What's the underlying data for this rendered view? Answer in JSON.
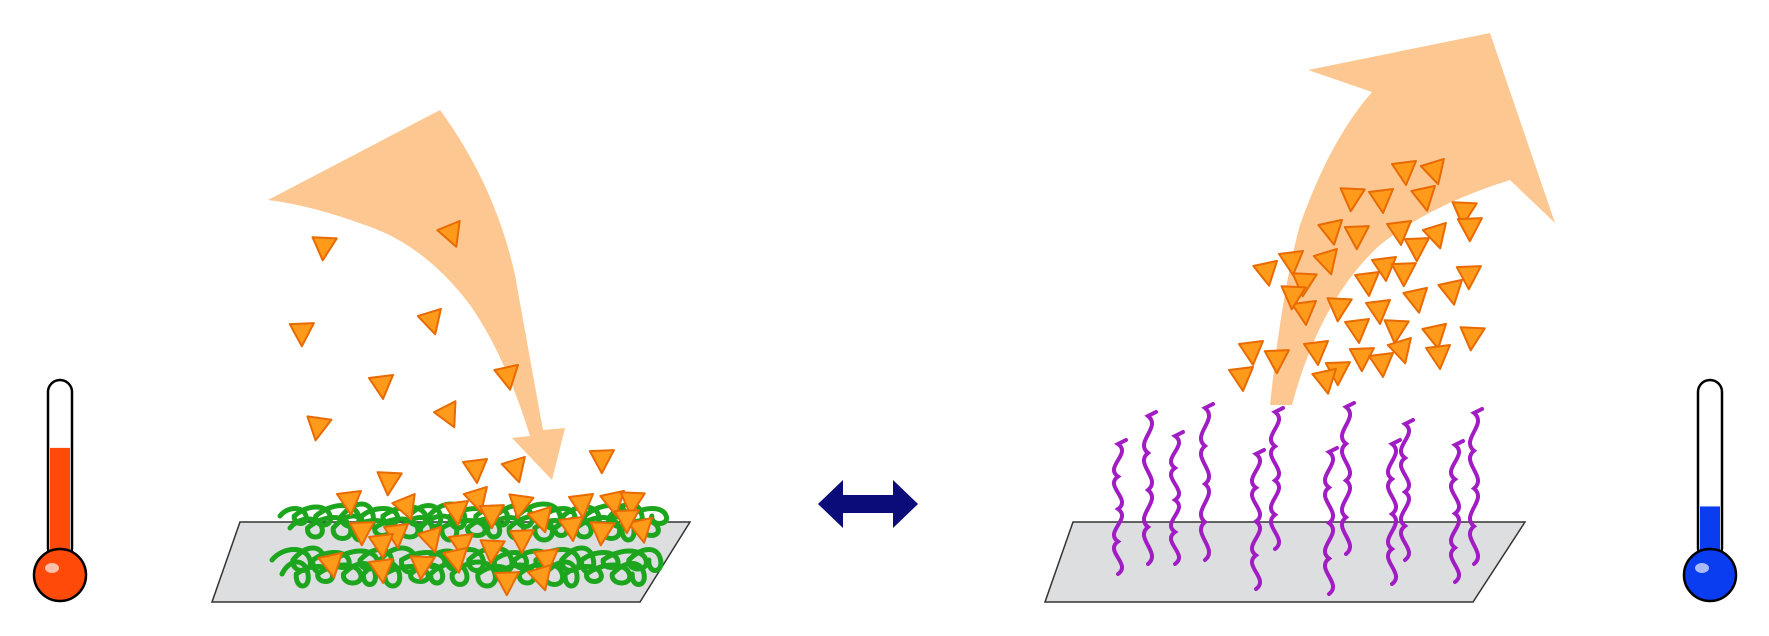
{
  "colors": {
    "background": "#ffffff",
    "surface_fill": "#dcdee0",
    "surface_stroke": "#333333",
    "flow_arrow": "#fdc48c",
    "particle_fill": "#ff9a1a",
    "particle_stroke": "#e86a00",
    "collapsed_chain": "#1ea51e",
    "extended_chain": "#a21cc4",
    "switch_arrow": "#0b0b7a",
    "hot_liquid": "#ff4a0a",
    "cold_liquid": "#0a3cf0",
    "thermometer_outline": "#000000"
  },
  "icons": {
    "hot_state": "thermometer-hot-icon",
    "cold_state": "thermometer-cold-icon",
    "switch": "double-headed-arrow-icon",
    "particle": "triangle-particle-icon"
  },
  "thermometers": {
    "hot_fill_level": 0.64,
    "cold_fill_level": 0.32
  }
}
